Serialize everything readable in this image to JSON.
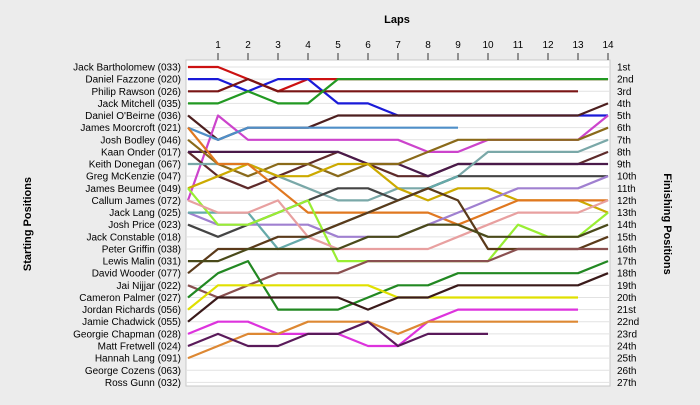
{
  "chart_data": {
    "type": "line",
    "title": "Laps",
    "ylabel_left": "Starting Positions",
    "ylabel_right": "Finishing Positions",
    "laps": [
      1,
      2,
      3,
      4,
      5,
      6,
      7,
      8,
      9,
      10,
      11,
      12,
      13,
      14
    ],
    "starting_positions": [
      "Jack Bartholomew (033)",
      "Daniel Fazzone (020)",
      "Philip Rawson (026)",
      "Jack Mitchell (035)",
      "Daniel O'Beirne (036)",
      "James Moorcroft (021)",
      "Josh Bodley (046)",
      "Kaan Onder (017)",
      "Keith Donegan (067)",
      "Greg McKenzie (047)",
      "James Beumee (049)",
      "Callum James (072)",
      "Jack Lang (025)",
      "Josh Price (023)",
      "Jack Constable (018)",
      "Peter Griffin (038)",
      "Lewis Malin (031)",
      "David Wooder (077)",
      "Jai Nijjar (022)",
      "Cameron Palmer (027)",
      "Jordan Richards (056)",
      "Jamie Chadwick (055)",
      "Georgie Chapman (028)",
      "Matt Fretwell (024)",
      "Hannah Lang (091)",
      "George Cozens (063)",
      "Ross Gunn (032)"
    ],
    "finishing_positions": [
      "1st",
      "2nd",
      "3rd",
      "4th",
      "5th",
      "6th",
      "7th",
      "8th",
      "9th",
      "10th",
      "11th",
      "12th",
      "13th",
      "14th",
      "15th",
      "16th",
      "17th",
      "18th",
      "19th",
      "20th",
      "21st",
      "22nd",
      "23rd",
      "24th",
      "25th",
      "26th",
      "27th"
    ],
    "series": [
      {
        "color": "#cc1111",
        "positions": [
          1,
          1,
          2,
          3,
          2,
          2,
          2,
          2,
          2,
          2,
          2,
          2,
          2,
          2,
          2
        ]
      },
      {
        "color": "#1a1ad8",
        "positions": [
          2,
          2,
          3,
          2,
          2,
          4,
          4,
          5,
          5,
          5,
          5,
          5,
          5,
          5,
          5
        ]
      },
      {
        "color": "#7a1515",
        "positions": [
          3,
          3,
          2,
          3,
          3,
          3,
          3,
          3,
          3,
          3,
          3,
          3,
          3,
          3
        ]
      },
      {
        "color": "#229922",
        "positions": [
          4,
          4,
          3,
          4,
          4,
          2,
          2,
          2,
          2,
          2,
          2,
          2,
          2,
          2,
          2
        ]
      },
      {
        "color": "#4d1f1f",
        "positions": [
          5,
          7,
          6,
          6,
          6,
          5,
          5,
          5,
          5,
          5,
          5,
          5,
          5,
          5,
          4
        ]
      },
      {
        "color": "#cc44cc",
        "positions": [
          12,
          5,
          7,
          7,
          7,
          7,
          7,
          7,
          8,
          8,
          7,
          7,
          7,
          7,
          5
        ]
      },
      {
        "color": "#4f8fc8",
        "positions": [
          6,
          7,
          6,
          6,
          6,
          6,
          6,
          6,
          6,
          6
        ]
      },
      {
        "color": "#5e2a2a",
        "positions": [
          8,
          10,
          11,
          10,
          9,
          8,
          9,
          10,
          10,
          9,
          9,
          9,
          9,
          9,
          8
        ]
      },
      {
        "color": "#4a1a4a",
        "positions": [
          8,
          8,
          8,
          8,
          8,
          8,
          9,
          9,
          10,
          9,
          9,
          9,
          9,
          9,
          9
        ]
      },
      {
        "color": "#7aa8a8",
        "positions": [
          9,
          9,
          9,
          10,
          11,
          12,
          12,
          11,
          11,
          10,
          8,
          8,
          8,
          8,
          7
        ]
      },
      {
        "color": "#8a6a1a",
        "positions": [
          7,
          9,
          10,
          9,
          9,
          10,
          9,
          9,
          8,
          7,
          7,
          7,
          7,
          7,
          6
        ]
      },
      {
        "color": "#ccaa00",
        "positions": [
          11,
          10,
          9,
          10,
          10,
          9,
          9,
          11,
          12,
          11,
          11,
          12,
          12,
          12,
          13
        ]
      },
      {
        "color": "#e07820",
        "positions": [
          6,
          9,
          9,
          11,
          13,
          13,
          13,
          13,
          13,
          14,
          13,
          12,
          12,
          12,
          12
        ]
      },
      {
        "color": "#444444",
        "positions": [
          14,
          15,
          14,
          13,
          12,
          11,
          11,
          12,
          11,
          10,
          10,
          10,
          10,
          10,
          10
        ]
      },
      {
        "color": "#a080d0",
        "positions": [
          13,
          14,
          14,
          14,
          14,
          15,
          15,
          15,
          14,
          13,
          12,
          11,
          11,
          11,
          10
        ]
      },
      {
        "color": "#66aaaa",
        "positions": [
          13,
          13,
          13,
          16,
          15,
          14,
          13,
          12,
          11,
          10
        ]
      },
      {
        "color": "#99ee33",
        "positions": [
          11,
          14,
          14,
          13,
          12,
          17,
          17,
          17,
          17,
          17,
          17,
          14,
          15,
          15,
          13
        ]
      },
      {
        "color": "#e8a0a0",
        "positions": [
          12,
          13,
          13,
          12,
          15,
          16,
          16,
          16,
          16,
          15,
          14,
          13,
          13,
          13,
          12
        ]
      },
      {
        "color": "#5a3a1a",
        "positions": [
          18,
          16,
          16,
          15,
          15,
          14,
          13,
          12,
          11,
          12,
          16,
          16,
          16,
          16,
          15
        ]
      },
      {
        "color": "#8a5050",
        "positions": [
          19,
          20,
          19,
          18,
          18,
          18,
          17,
          17,
          17,
          17,
          17,
          16,
          16,
          16,
          16
        ]
      },
      {
        "color": "#4a4a1a",
        "positions": [
          17,
          17,
          16,
          16,
          16,
          16,
          15,
          15,
          14,
          14,
          15,
          15,
          15,
          15,
          14
        ]
      },
      {
        "color": "#228822",
        "positions": [
          20,
          18,
          17,
          21,
          21,
          21,
          20,
          19,
          19,
          18,
          18,
          18,
          18,
          18,
          17
        ]
      },
      {
        "color": "#e0e000",
        "positions": [
          21,
          19,
          19,
          19,
          19,
          19,
          19,
          20,
          20,
          20,
          20,
          20,
          20,
          20
        ]
      },
      {
        "color": "#3a1a1a",
        "positions": [
          22,
          20,
          20,
          20,
          20,
          20,
          21,
          20,
          20,
          19,
          19,
          19,
          19,
          19,
          18
        ]
      },
      {
        "color": "#dd33dd",
        "positions": [
          23,
          22,
          22,
          23,
          23,
          23,
          24,
          24,
          22,
          21,
          21,
          21,
          21,
          21
        ]
      },
      {
        "color": "#dd8833",
        "positions": [
          25,
          24,
          23,
          23,
          22,
          22,
          22,
          23,
          22,
          22,
          22,
          22,
          22,
          22
        ]
      },
      {
        "color": "#5a1a5a",
        "positions": [
          24,
          23,
          24,
          24,
          23,
          23,
          22,
          24,
          23,
          23,
          23
        ]
      }
    ]
  }
}
